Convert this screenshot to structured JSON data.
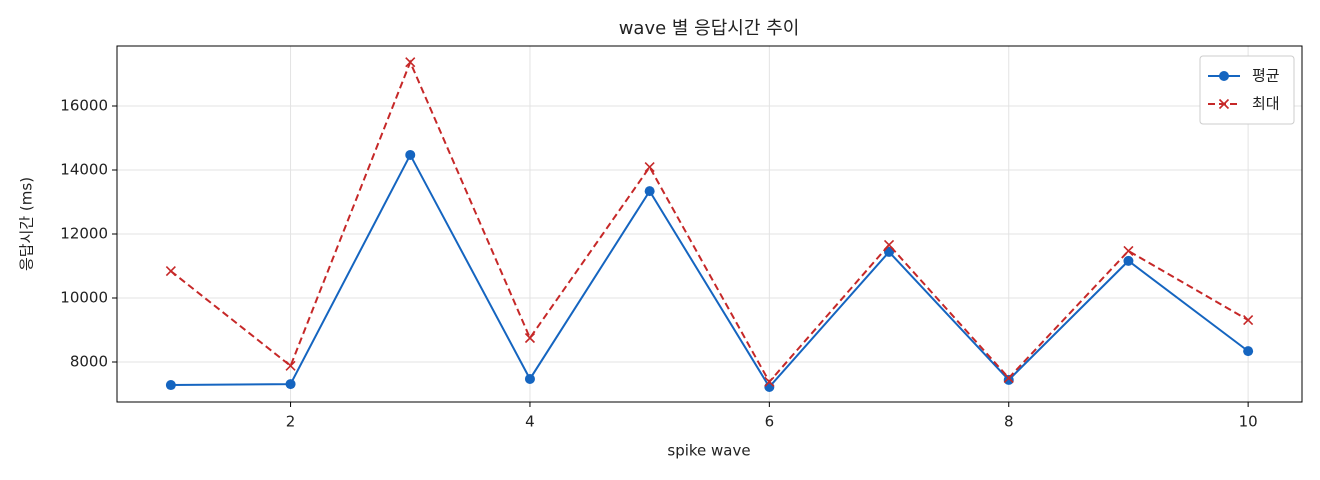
{
  "chart_data": {
    "type": "line",
    "title": "wave 별 응답시간 추이",
    "x_label": "spike wave",
    "y_label": "응답시간 (ms)",
    "x": [
      1,
      2,
      3,
      4,
      5,
      6,
      7,
      8,
      9,
      10
    ],
    "series": [
      {
        "name": "평균",
        "color": "#1565c0",
        "marker": "o",
        "linestyle": "solid",
        "values": [
          7280,
          7310,
          14470,
          7470,
          13340,
          7220,
          11440,
          7440,
          11160,
          8340
        ]
      },
      {
        "name": "최대",
        "color": "#c62828",
        "marker": "x",
        "linestyle": "dashed",
        "values": [
          10840,
          7880,
          17370,
          8750,
          14090,
          7380,
          11660,
          7500,
          11470,
          9310
        ]
      }
    ],
    "xlim": [
      0.55,
      10.45
    ],
    "xticks": [
      2,
      4,
      6,
      8,
      10
    ],
    "ylim": [
      6750,
      17875
    ],
    "yticks": [
      8000,
      10000,
      12000,
      14000,
      16000
    ],
    "grid": true,
    "legend": "upper right"
  }
}
